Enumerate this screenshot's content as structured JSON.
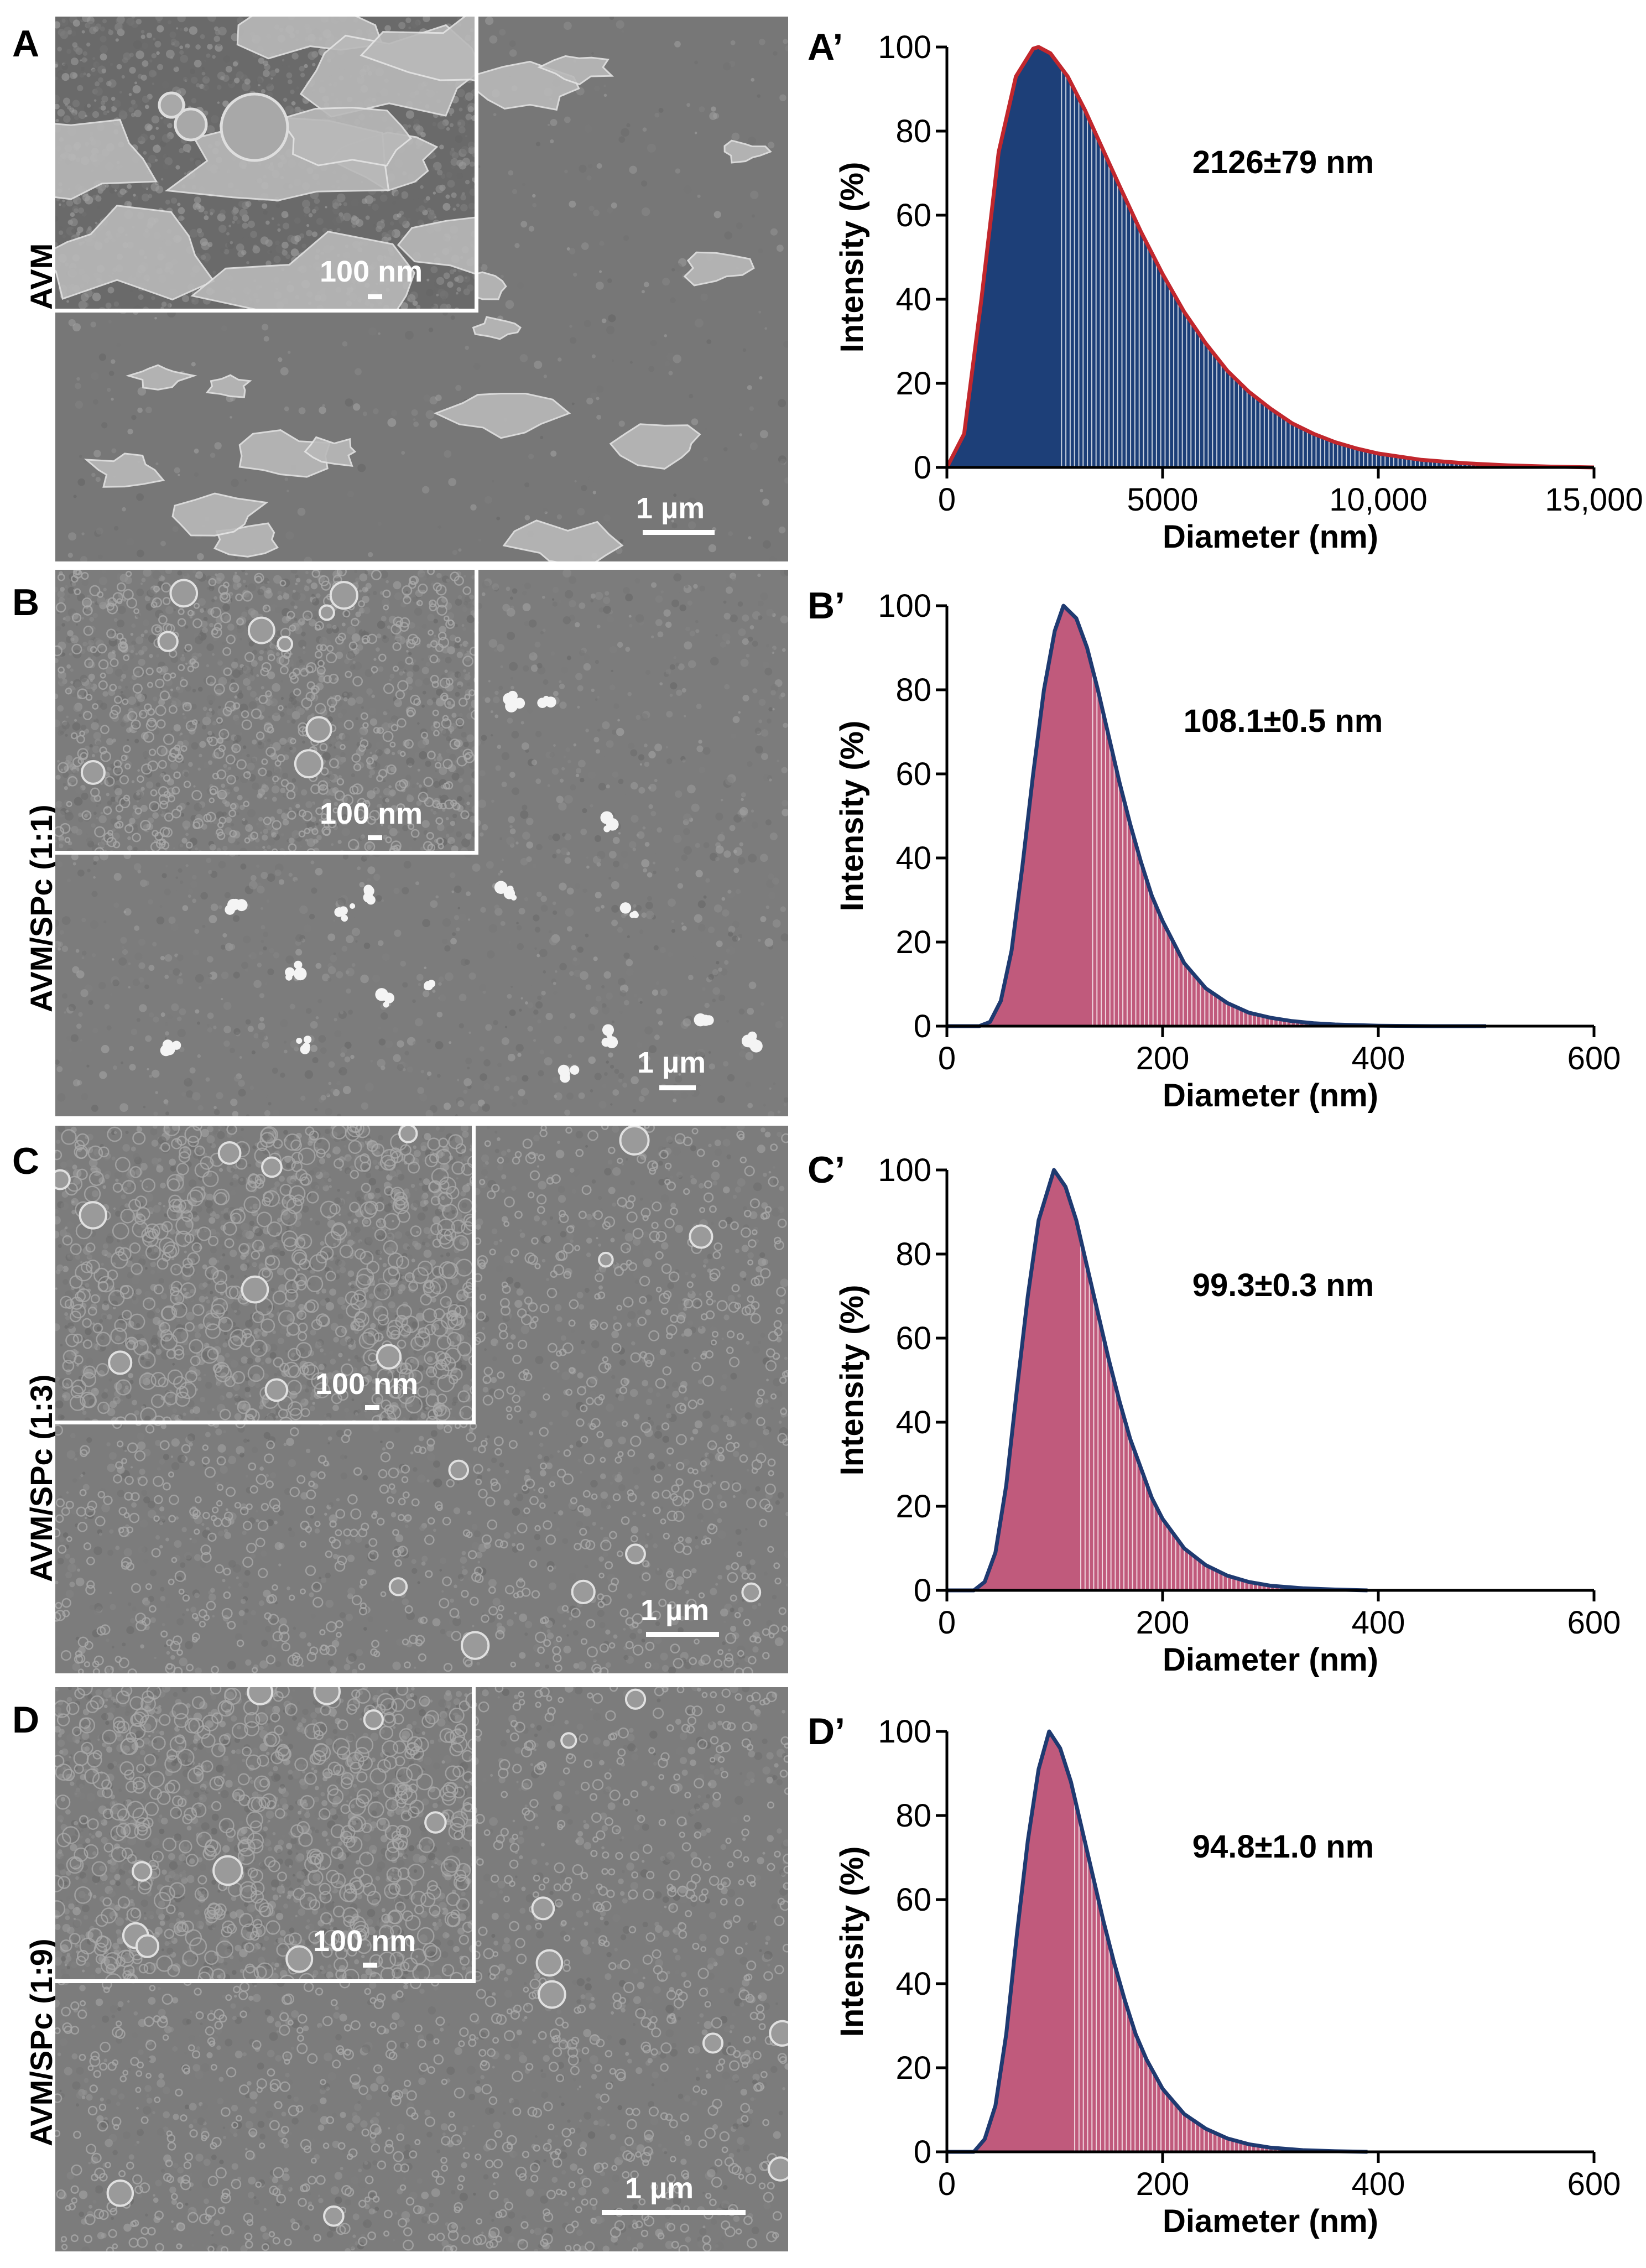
{
  "panels": [
    {
      "letter": "A",
      "label": "AVM",
      "inset_scale": "100 nm",
      "main_scale": "1 µm"
    },
    {
      "letter": "B",
      "label": "AVM/SPc (1:1)",
      "inset_scale": "100 nm",
      "main_scale": "1 µm"
    },
    {
      "letter": "C",
      "label": "AVM/SPc (1:3)",
      "inset_scale": "100 nm",
      "main_scale": "1 µm"
    },
    {
      "letter": "D",
      "label": "AVM/SPc (1:9)",
      "inset_scale": "100 nm",
      "main_scale": "1 µm"
    }
  ],
  "chart_data": [
    {
      "panel": "A’",
      "type": "area",
      "annotation": "2126±79 nm",
      "xlabel": "Diameter (nm)",
      "ylabel": "Intensity (%)",
      "xlim": [
        0,
        15000
      ],
      "ylim": [
        0,
        100
      ],
      "xticks": [
        0,
        5000,
        10000,
        15000
      ],
      "xtick_labels": [
        "0",
        "5000",
        "10,000",
        "15,000"
      ],
      "yticks": [
        0,
        20,
        40,
        60,
        80,
        100
      ],
      "peak": 2126,
      "x": [
        0,
        400,
        800,
        1200,
        1600,
        2000,
        2126,
        2400,
        2800,
        3200,
        3600,
        4000,
        4500,
        5000,
        5500,
        6000,
        6500,
        7000,
        7500,
        8000,
        8500,
        9000,
        9500,
        10000,
        11000,
        12000,
        13000,
        14000,
        15000
      ],
      "y": [
        0,
        8,
        40,
        75,
        93,
        99.6,
        100,
        98.5,
        93,
        85,
        76,
        67,
        56,
        46,
        37,
        29.5,
        23,
        18,
        14,
        10.5,
        8,
        6,
        4.5,
        3.3,
        1.8,
        1,
        0.5,
        0.2,
        0
      ],
      "fill_color": "#1d3f78",
      "line_color": "#c1272d"
    },
    {
      "panel": "B’",
      "type": "area",
      "annotation": "108.1±0.5 nm",
      "xlabel": "Diameter (nm)",
      "ylabel": "Intensity (%)",
      "xlim": [
        0,
        600
      ],
      "ylim": [
        0,
        100
      ],
      "xticks": [
        0,
        200,
        400,
        600
      ],
      "xtick_labels": [
        "0",
        "200",
        "400",
        "600"
      ],
      "yticks": [
        0,
        20,
        40,
        60,
        80,
        100
      ],
      "peak": 108.1,
      "x": [
        0,
        30,
        40,
        50,
        60,
        70,
        80,
        90,
        100,
        108.1,
        120,
        130,
        140,
        150,
        160,
        170,
        180,
        190,
        200,
        220,
        240,
        260,
        280,
        300,
        320,
        340,
        360,
        400,
        450,
        500
      ],
      "y": [
        0,
        0,
        1,
        6,
        18,
        38,
        60,
        80,
        94,
        100,
        97,
        90,
        80,
        69,
        58,
        48,
        39,
        31,
        25,
        15,
        9,
        5.5,
        3.2,
        2,
        1.2,
        0.7,
        0.4,
        0.1,
        0,
        0
      ],
      "fill_color": "#c05a7c",
      "line_color": "#1f3a70"
    },
    {
      "panel": "C’",
      "type": "area",
      "annotation": "99.3±0.3 nm",
      "xlabel": "Diameter (nm)",
      "ylabel": "Intensity (%)",
      "xlim": [
        0,
        600
      ],
      "ylim": [
        0,
        100
      ],
      "xticks": [
        0,
        200,
        400,
        600
      ],
      "xtick_labels": [
        "0",
        "200",
        "400",
        "600"
      ],
      "yticks": [
        0,
        20,
        40,
        60,
        80,
        100
      ],
      "peak": 99.3,
      "x": [
        0,
        25,
        35,
        45,
        55,
        65,
        75,
        85,
        99.3,
        110,
        120,
        130,
        140,
        150,
        160,
        170,
        180,
        190,
        200,
        220,
        240,
        260,
        280,
        300,
        330,
        360,
        390
      ],
      "y": [
        0,
        0,
        2,
        9,
        25,
        48,
        70,
        88,
        100,
        96,
        88,
        77,
        66,
        55,
        45,
        36,
        29,
        22,
        17,
        10,
        6,
        3.5,
        2,
        1.1,
        0.5,
        0.2,
        0
      ],
      "fill_color": "#c05a7c",
      "line_color": "#1f3a70"
    },
    {
      "panel": "D’",
      "type": "area",
      "annotation": "94.8±1.0 nm",
      "xlabel": "Diameter (nm)",
      "ylabel": "Intensity (%)",
      "xlim": [
        0,
        600
      ],
      "ylim": [
        0,
        100
      ],
      "xticks": [
        0,
        200,
        400,
        600
      ],
      "xtick_labels": [
        "0",
        "200",
        "400",
        "600"
      ],
      "yticks": [
        0,
        20,
        40,
        60,
        80,
        100
      ],
      "peak": 94.8,
      "x": [
        0,
        25,
        35,
        45,
        55,
        65,
        75,
        85,
        94.8,
        105,
        115,
        125,
        135,
        145,
        155,
        165,
        175,
        185,
        200,
        220,
        240,
        260,
        280,
        300,
        330,
        360,
        390
      ],
      "y": [
        0,
        0,
        3,
        11,
        28,
        52,
        74,
        91,
        100,
        96,
        88,
        77,
        66,
        55,
        45,
        36,
        28,
        22,
        15,
        9,
        5.5,
        3.2,
        1.8,
        1,
        0.4,
        0.15,
        0
      ],
      "fill_color": "#c05a7c",
      "line_color": "#1f3a70"
    }
  ]
}
